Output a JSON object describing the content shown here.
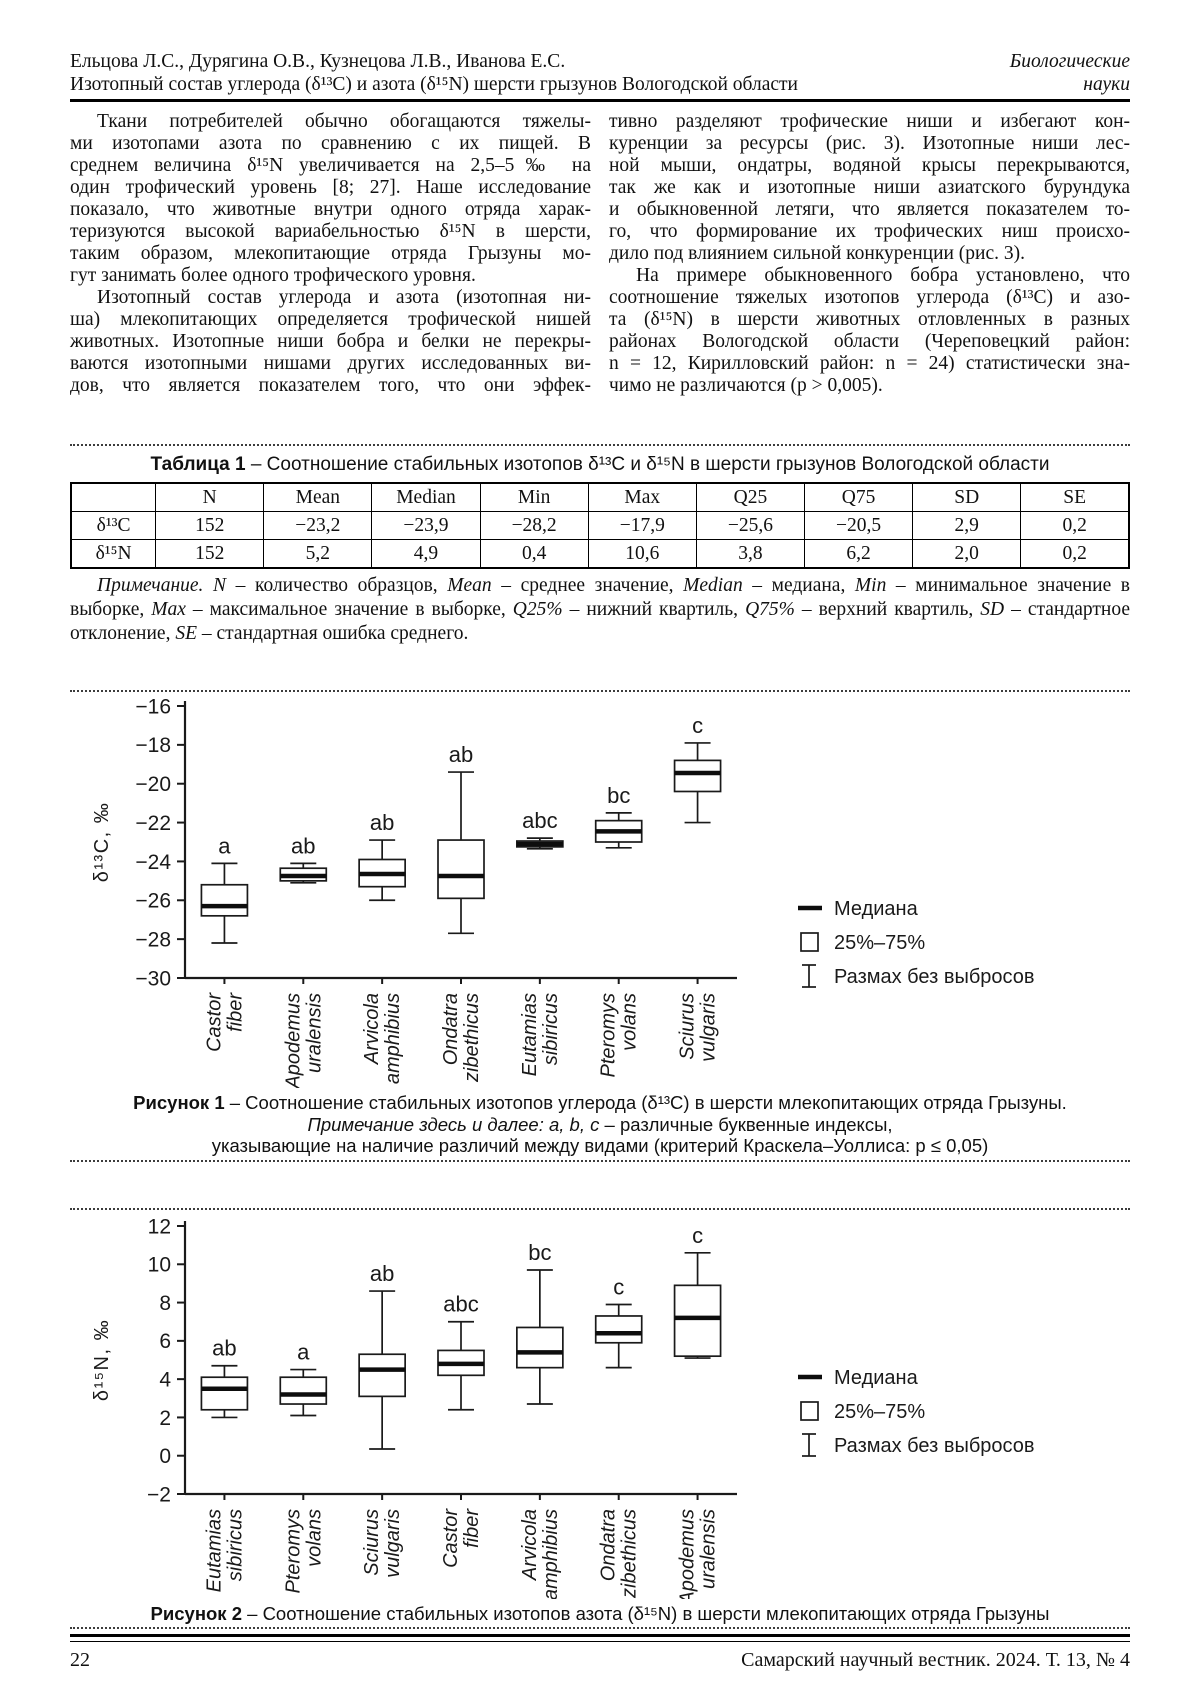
{
  "colors": {
    "text": "#111111",
    "page_bg": "#ffffff",
    "chart_stroke": "#1a1a1a"
  },
  "header": {
    "authors": "Ельцова Л.С., Дурягина О.В., Кузнецова Л.В., Иванова Е.С.",
    "article_title": "Изотопный состав углерода (δ¹³C) и азота (δ¹⁵N) шерсти грызунов Вологодской области",
    "section_line1": "Биологические",
    "section_line2": "науки"
  },
  "body": {
    "left_lines": [
      {
        "t": "Ткани потребителей обычно обогащаются тяжелы-",
        "in": 1
      },
      {
        "t": "ми изотопами азота по сравнению с их пищей. В"
      },
      {
        "t": "среднем величина δ¹⁵N увеличивается на 2,5–5‰ на"
      },
      {
        "t": "один трофический уровень [8; 27]. Наше исследование"
      },
      {
        "t": "показало, что животные внутри одного отряда харак-"
      },
      {
        "t": "теризуются высокой вариабельностью δ¹⁵N в шерсти,"
      },
      {
        "t": "таким образом, млекопитающие отряда Грызуны мо-"
      },
      {
        "t": "гут занимать более одного трофического уровня.",
        "end": 1
      },
      {
        "t": "Изотопный состав углерода и азота (изотопная ни-",
        "in": 1
      },
      {
        "t": "ша) млекопитающих определяется трофической нишей"
      },
      {
        "t": "животных. Изотопные ниши бобра и белки не перекры-"
      },
      {
        "t": "ваются изотопными нишами других исследованных ви-"
      },
      {
        "t": "дов, что является показателем того, что они эффек-"
      }
    ],
    "right_lines": [
      {
        "t": "тивно разделяют трофические ниши и избегают кон-"
      },
      {
        "t": "куренции за ресурсы (рис. 3). Изотопные ниши лес-"
      },
      {
        "t": "ной мыши, ондатры, водяной крысы перекрываются,"
      },
      {
        "t": "так же как и изотопные ниши азиатского бурундука"
      },
      {
        "t": "и обыкновенной летяги, что является показателем то-"
      },
      {
        "t": "го, что формирование их трофических ниш происхо-"
      },
      {
        "t": "дило под влиянием сильной конкуренции (рис. 3).",
        "end": 1
      },
      {
        "t": "На примере обыкновенного бобра установлено, что",
        "in": 1
      },
      {
        "t": "соотношение тяжелых изотопов углерода (δ¹³C) и азо-"
      },
      {
        "t": "та (δ¹⁵N) в шерсти животных отловленных в разных"
      },
      {
        "t": "районах Вологодской области (Череповецкий район:"
      },
      {
        "t": "n = 12, Кирилловский район: n = 24) статистически зна-"
      },
      {
        "t": "чимо не различаются (p > 0,005).",
        "end": 1
      }
    ]
  },
  "table": {
    "title_runs": [
      {
        "t": "Таблица 1",
        "b": 1
      },
      {
        "t": " – Соотношение стабильных изотопов δ¹³C и δ¹⁵N в шерсти грызунов Вологодской области"
      }
    ],
    "headers": [
      "",
      "N",
      "Mean",
      "Median",
      "Min",
      "Max",
      "Q25",
      "Q75",
      "SD",
      "SE"
    ],
    "rows": [
      [
        "δ¹³C",
        "152",
        "−23,2",
        "−23,9",
        "−28,2",
        "−17,9",
        "−25,6",
        "−20,5",
        "2,9",
        "0,2"
      ],
      [
        "δ¹⁵N",
        "152",
        "5,2",
        "4,9",
        "0,4",
        "10,6",
        "3,8",
        "6,2",
        "2,0",
        "0,2"
      ]
    ],
    "note_runs": [
      {
        "t": "Примечание.",
        "i": 1
      },
      {
        "t": " "
      },
      {
        "t": "N",
        "i": 1
      },
      {
        "t": " – количество образцов, "
      },
      {
        "t": "Mean",
        "i": 1
      },
      {
        "t": " – среднее значение, "
      },
      {
        "t": "Median",
        "i": 1
      },
      {
        "t": " – медиана, "
      },
      {
        "t": "Min",
        "i": 1
      },
      {
        "t": " – минимальное значение в выборке, "
      },
      {
        "t": "Max",
        "i": 1
      },
      {
        "t": " – максимальное значение в выборке, "
      },
      {
        "t": "Q25%",
        "i": 1
      },
      {
        "t": " – нижний квартиль, "
      },
      {
        "t": "Q75%",
        "i": 1
      },
      {
        "t": " – верхний квартиль, "
      },
      {
        "t": "SD",
        "i": 1
      },
      {
        "t": " – стандартное отклонение, "
      },
      {
        "t": "SE",
        "i": 1
      },
      {
        "t": " – стандартная ошибка среднего."
      }
    ]
  },
  "figure1": {
    "caption_runs": [
      {
        "t": "Рисунок 1",
        "b": 1
      },
      {
        "t": " – Соотношение стабильных изотопов углерода (δ¹³C) в шерсти млекопитающих отряда Грызуны."
      }
    ],
    "note_line1_runs": [
      {
        "t": "Примечание здесь и далее: a, b, c",
        "i": 1
      },
      {
        "t": " – различные буквенные индексы,"
      }
    ],
    "note_line2": "указывающие на наличие различий между видами (критерий Краскела–Уоллиса: p ≤ 0,05)"
  },
  "figure2": {
    "caption_runs": [
      {
        "t": "Рисунок 2",
        "b": 1
      },
      {
        "t": " – Соотношение стабильных изотопов азота (δ¹⁵N) в шерсти млекопитающих отряда Грызуны"
      }
    ]
  },
  "footer": {
    "page_number": "22",
    "journal": "Самарский научный вестник. 2024. Т. 13, № 4"
  },
  "chart_data": [
    {
      "type": "box",
      "title": "",
      "ylabel": "δ¹³C, ‰",
      "xlabel": "",
      "ylim": [
        -30,
        -16
      ],
      "yticks": [
        -16,
        -18,
        -20,
        -22,
        -24,
        -26,
        -28,
        -30
      ],
      "grid": false,
      "legend": [
        "Медиана",
        "25%–75%",
        "Размах без выбросов"
      ],
      "legend_position": "right",
      "categories": [
        "Castor fiber",
        "Apodemus uralensis",
        "Arvicola amphibius",
        "Ondatra zibethicus",
        "Eutamias sibiricus",
        "Pteromys volans",
        "Sciurus vulgaris"
      ],
      "boxes": [
        {
          "species": [
            "Castor",
            "fiber"
          ],
          "sig": "a",
          "low": -28.2,
          "q1": -26.8,
          "median": -26.3,
          "q3": -25.2,
          "high": -24.1
        },
        {
          "species": [
            "Apodemus",
            "uralensis"
          ],
          "sig": "ab",
          "low": -25.1,
          "q1": -25.0,
          "median": -24.75,
          "q3": -24.35,
          "high": -24.1
        },
        {
          "species": [
            "Arvicola",
            "amphibius"
          ],
          "sig": "ab",
          "low": -26.0,
          "q1": -25.3,
          "median": -24.65,
          "q3": -23.9,
          "high": -22.9
        },
        {
          "species": [
            "Ondatra",
            "zibethicus"
          ],
          "sig": "ab",
          "low": -27.7,
          "q1": -25.9,
          "median": -24.75,
          "q3": -22.9,
          "high": -19.4
        },
        {
          "species": [
            "Eutamias",
            "sibiricus"
          ],
          "sig": "abc",
          "low": -23.35,
          "q1": -23.25,
          "median": -23.1,
          "q3": -22.95,
          "high": -22.8
        },
        {
          "species": [
            "Pteromys",
            "volans"
          ],
          "sig": "bc",
          "low": -23.3,
          "q1": -23.0,
          "median": -22.45,
          "q3": -21.9,
          "high": -21.5
        },
        {
          "species": [
            "Sciurus",
            "vulgaris"
          ],
          "sig": "c",
          "low": -22.0,
          "q1": -20.4,
          "median": -19.45,
          "q3": -18.8,
          "high": -17.9
        }
      ]
    },
    {
      "type": "box",
      "title": "",
      "ylabel": "δ¹⁵N, ‰",
      "xlabel": "",
      "ylim": [
        -2,
        12
      ],
      "yticks": [
        12,
        10,
        8,
        6,
        4,
        2,
        0,
        -2
      ],
      "grid": false,
      "legend": [
        "Медиана",
        "25%–75%",
        "Размах без выбросов"
      ],
      "legend_position": "right",
      "categories": [
        "Eutamias sibiricus",
        "Pteromys volans",
        "Sciurus vulgaris",
        "Castor fiber",
        "Arvicola amphibius",
        "Ondatra zibethicus",
        "Apodemus uralensis"
      ],
      "boxes": [
        {
          "species": [
            "Eutamias",
            "sibiricus"
          ],
          "sig": "ab",
          "low": 2.0,
          "q1": 2.4,
          "median": 3.5,
          "q3": 4.1,
          "high": 4.7
        },
        {
          "species": [
            "Pteromys",
            "volans"
          ],
          "sig": "a",
          "low": 2.1,
          "q1": 2.7,
          "median": 3.2,
          "q3": 4.1,
          "high": 4.5
        },
        {
          "species": [
            "Sciurus",
            "vulgaris"
          ],
          "sig": "ab",
          "low": 0.35,
          "q1": 3.1,
          "median": 4.5,
          "q3": 5.3,
          "high": 8.6
        },
        {
          "species": [
            "Castor",
            "fiber"
          ],
          "sig": "abc",
          "low": 2.4,
          "q1": 4.2,
          "median": 4.8,
          "q3": 5.5,
          "high": 7.0
        },
        {
          "species": [
            "Arvicola",
            "amphibius"
          ],
          "sig": "bc",
          "low": 2.7,
          "q1": 4.6,
          "median": 5.4,
          "q3": 6.7,
          "high": 9.7
        },
        {
          "species": [
            "Ondatra",
            "zibethicus"
          ],
          "sig": "c",
          "low": 4.6,
          "q1": 5.9,
          "median": 6.4,
          "q3": 7.3,
          "high": 7.9
        },
        {
          "species": [
            "Apodemus",
            "uralensis"
          ],
          "sig": "c",
          "low": 5.1,
          "q1": 5.2,
          "median": 7.2,
          "q3": 8.9,
          "high": 10.6
        }
      ]
    }
  ]
}
